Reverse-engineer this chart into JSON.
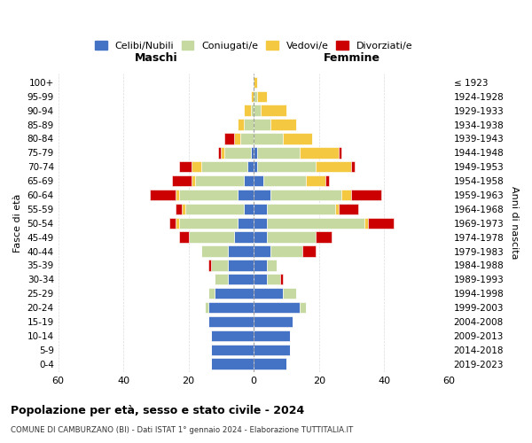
{
  "age_groups": [
    "0-4",
    "5-9",
    "10-14",
    "15-19",
    "20-24",
    "25-29",
    "30-34",
    "35-39",
    "40-44",
    "45-49",
    "50-54",
    "55-59",
    "60-64",
    "65-69",
    "70-74",
    "75-79",
    "80-84",
    "85-89",
    "90-94",
    "95-99",
    "100+"
  ],
  "birth_years": [
    "2019-2023",
    "2014-2018",
    "2009-2013",
    "2004-2008",
    "1999-2003",
    "1994-1998",
    "1989-1993",
    "1984-1988",
    "1979-1983",
    "1974-1978",
    "1969-1973",
    "1964-1968",
    "1959-1963",
    "1954-1958",
    "1949-1953",
    "1944-1948",
    "1939-1943",
    "1934-1938",
    "1929-1933",
    "1924-1928",
    "≤ 1923"
  ],
  "colors": {
    "celibi": "#4472C4",
    "coniugati": "#C5D9A0",
    "vedovi": "#F5C842",
    "divorziati": "#CC0000"
  },
  "maschi": {
    "celibi": [
      13,
      13,
      13,
      14,
      14,
      12,
      8,
      8,
      8,
      6,
      5,
      3,
      5,
      3,
      2,
      1,
      0,
      0,
      0,
      0,
      0
    ],
    "coniugati": [
      0,
      0,
      0,
      0,
      1,
      2,
      4,
      5,
      8,
      14,
      18,
      18,
      18,
      15,
      14,
      8,
      4,
      3,
      1,
      0,
      0
    ],
    "vedovi": [
      0,
      0,
      0,
      0,
      0,
      0,
      0,
      0,
      0,
      0,
      1,
      1,
      1,
      1,
      3,
      1,
      2,
      2,
      2,
      1,
      0
    ],
    "divorziati": [
      0,
      0,
      0,
      0,
      0,
      0,
      0,
      1,
      0,
      3,
      2,
      2,
      8,
      6,
      4,
      1,
      3,
      0,
      0,
      0,
      0
    ]
  },
  "femmine": {
    "celibi": [
      10,
      11,
      11,
      12,
      14,
      9,
      4,
      4,
      5,
      4,
      4,
      4,
      5,
      3,
      1,
      1,
      0,
      0,
      0,
      0,
      0
    ],
    "coniugati": [
      0,
      0,
      0,
      0,
      2,
      4,
      4,
      3,
      10,
      15,
      30,
      21,
      22,
      13,
      18,
      13,
      9,
      5,
      2,
      1,
      0
    ],
    "vedovi": [
      0,
      0,
      0,
      0,
      0,
      0,
      0,
      0,
      0,
      0,
      1,
      1,
      3,
      6,
      11,
      12,
      9,
      8,
      8,
      3,
      1
    ],
    "divorziati": [
      0,
      0,
      0,
      0,
      0,
      0,
      1,
      0,
      4,
      5,
      8,
      6,
      9,
      1,
      1,
      1,
      0,
      0,
      0,
      0,
      0
    ]
  },
  "xlim": 60,
  "title": "Popolazione per età, sesso e stato civile - 2024",
  "subtitle": "COMUNE DI CAMBURZANO (BI) - Dati ISTAT 1° gennaio 2024 - Elaborazione TUTTITALIA.IT",
  "ylabel": "Fasce di età",
  "ylabel_right": "Anni di nascita",
  "legend_labels": [
    "Celibi/Nubili",
    "Coniugati/e",
    "Vedovi/e",
    "Divorziati/e"
  ],
  "maschi_label": "Maschi",
  "femmine_label": "Femmine"
}
